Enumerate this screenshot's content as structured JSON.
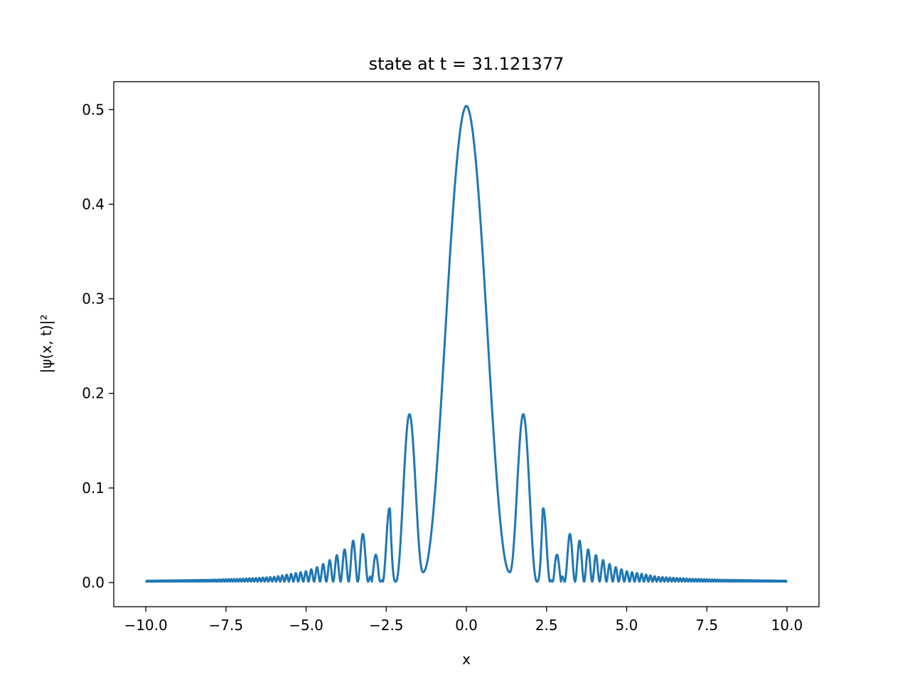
{
  "chart_data": {
    "type": "line",
    "title": "state at t = 31.121377",
    "xlabel": "x",
    "ylabel": "|ψ(x, t)|²",
    "xlim": [
      -11.0,
      11.0
    ],
    "ylim": [
      -0.0255,
      0.5295
    ],
    "grid": false,
    "legend": "none",
    "x_ticks": [
      -10.0,
      -7.5,
      -5.0,
      -2.5,
      0.0,
      2.5,
      5.0,
      7.5,
      10.0
    ],
    "x_tick_labels": [
      "−10.0",
      "−7.5",
      "−5.0",
      "−2.5",
      "0.0",
      "2.5",
      "5.0",
      "7.5",
      "10.0"
    ],
    "y_ticks": [
      0.0,
      0.1,
      0.2,
      0.3,
      0.4,
      0.5
    ],
    "y_tick_labels": [
      "0.0",
      "0.1",
      "0.2",
      "0.3",
      "0.4",
      "0.5"
    ],
    "series": [
      {
        "color": "#1f77b4",
        "key_points": {
          "x": [
            0.0,
            1.35,
            1.8,
            2.2,
            2.38,
            2.6,
            2.75,
            2.95,
            3.1,
            3.28,
            3.45,
            3.6,
            3.8,
            4.0,
            4.2,
            4.6,
            5.0,
            6.0,
            7.0,
            8.0,
            10.0
          ],
          "y_max": [
            0.504,
            0.011,
            0.178,
            0.001,
            0.099,
            0.001,
            0.058,
            0.001,
            0.055,
            0.05,
            0.047,
            0.042,
            0.035,
            0.03,
            0.025,
            0.017,
            0.012,
            0.006,
            0.004,
            0.003,
            0.002
          ]
        }
      }
    ]
  }
}
